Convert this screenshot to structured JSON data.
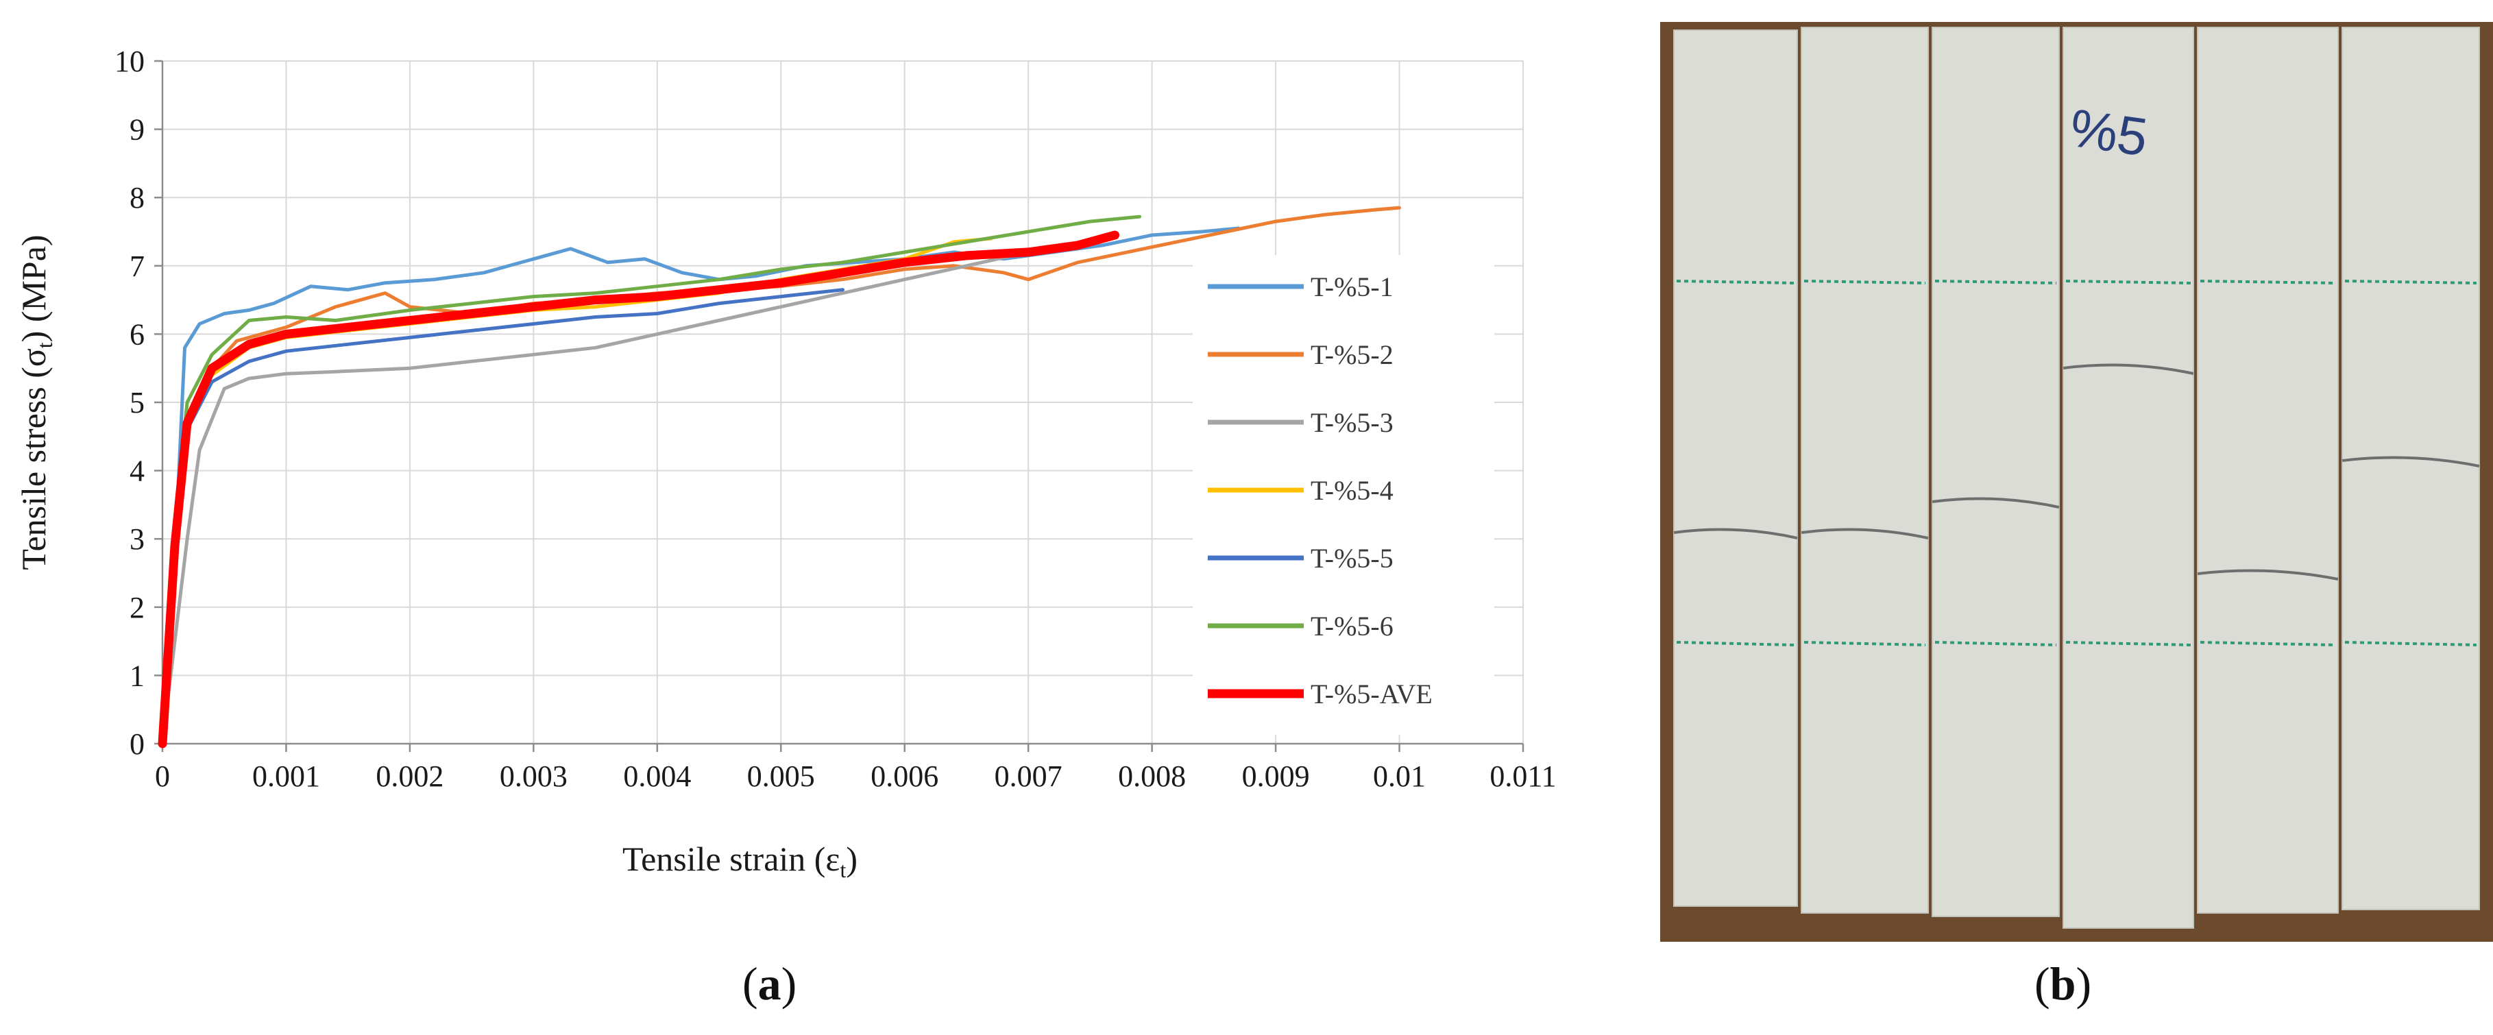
{
  "panels": {
    "a_label": "a",
    "b_label": "b"
  },
  "chart_data": {
    "type": "line",
    "xlabel_prefix": "Tensile strain (ε",
    "xlabel_sub": "t",
    "xlabel_suffix": ")",
    "ylabel_prefix": "Tensile stress (σ",
    "ylabel_sub": "t",
    "ylabel_suffix": ") (MPa)",
    "xlim": [
      0,
      0.011
    ],
    "ylim": [
      0,
      10
    ],
    "xticks": [
      0,
      0.001,
      0.002,
      0.003,
      0.004,
      0.005,
      0.006,
      0.007,
      0.008,
      0.009,
      0.01,
      0.011
    ],
    "xtick_labels": [
      "0",
      "0.001",
      "0.002",
      "0.003",
      "0.004",
      "0.005",
      "0.006",
      "0.007",
      "0.008",
      "0.009",
      "0.01",
      "0.011"
    ],
    "yticks": [
      0,
      1,
      2,
      3,
      4,
      5,
      6,
      7,
      8,
      9,
      10
    ],
    "ytick_labels": [
      "0",
      "1",
      "2",
      "3",
      "4",
      "5",
      "6",
      "7",
      "8",
      "9",
      "10"
    ],
    "grid": true,
    "legend_position": "right",
    "series": [
      {
        "name": "T-%5-1",
        "color": "#5b9bd5",
        "width": 5,
        "x": [
          0,
          0.00012,
          0.00018,
          0.0003,
          0.0005,
          0.0007,
          0.0009,
          0.0012,
          0.0015,
          0.0018,
          0.0022,
          0.0026,
          0.003,
          0.0033,
          0.0036,
          0.0039,
          0.0042,
          0.0045,
          0.0048,
          0.0052,
          0.0056,
          0.006,
          0.0064,
          0.0068,
          0.0072,
          0.0076,
          0.008,
          0.0084,
          0.0087
        ],
        "y": [
          0,
          3.5,
          5.8,
          6.15,
          6.3,
          6.35,
          6.45,
          6.7,
          6.65,
          6.75,
          6.8,
          6.9,
          7.1,
          7.25,
          7.05,
          7.1,
          6.9,
          6.8,
          6.85,
          7.0,
          7.05,
          7.1,
          7.2,
          7.1,
          7.2,
          7.3,
          7.45,
          7.5,
          7.55
        ]
      },
      {
        "name": "T-%5-2",
        "color": "#ed7d31",
        "width": 5,
        "x": [
          0,
          0.0001,
          0.0002,
          0.0004,
          0.0006,
          0.001,
          0.0014,
          0.0018,
          0.002,
          0.0025,
          0.003,
          0.0035,
          0.004,
          0.0045,
          0.005,
          0.0055,
          0.006,
          0.0064,
          0.0068,
          0.007,
          0.0074,
          0.0078,
          0.0082,
          0.0086,
          0.009,
          0.0094,
          0.0098,
          0.01
        ],
        "y": [
          0,
          3.0,
          4.8,
          5.5,
          5.9,
          6.1,
          6.4,
          6.6,
          6.4,
          6.3,
          6.45,
          6.5,
          6.6,
          6.65,
          6.7,
          6.8,
          6.95,
          7.0,
          6.9,
          6.8,
          7.05,
          7.2,
          7.35,
          7.5,
          7.65,
          7.75,
          7.82,
          7.85
        ]
      },
      {
        "name": "T-%5-3",
        "color": "#a5a5a5",
        "width": 5,
        "x": [
          0,
          0.0001,
          0.0002,
          0.0003,
          0.0005,
          0.0007,
          0.001,
          0.0014,
          0.002,
          0.0025,
          0.003,
          0.0035,
          0.004,
          0.0045,
          0.005,
          0.0055,
          0.006,
          0.0065,
          0.007
        ],
        "y": [
          0,
          1.5,
          3.0,
          4.3,
          5.2,
          5.35,
          5.42,
          5.45,
          5.5,
          5.6,
          5.7,
          5.8,
          6.0,
          6.2,
          6.4,
          6.6,
          6.8,
          7.0,
          7.2
        ]
      },
      {
        "name": "T-%5-4",
        "color": "#ffc000",
        "width": 5,
        "x": [
          0,
          0.0001,
          0.0002,
          0.0004,
          0.0007,
          0.001,
          0.0015,
          0.002,
          0.0025,
          0.003,
          0.0035,
          0.004,
          0.0045,
          0.005,
          0.0055,
          0.006,
          0.0064,
          0.0067
        ],
        "y": [
          0,
          3.0,
          4.6,
          5.4,
          5.8,
          5.95,
          6.05,
          6.15,
          6.25,
          6.35,
          6.4,
          6.5,
          6.6,
          6.8,
          6.95,
          7.1,
          7.35,
          7.4
        ]
      },
      {
        "name": "T-%5-5",
        "color": "#4472c4",
        "width": 5,
        "x": [
          0,
          0.0001,
          0.0002,
          0.0004,
          0.0007,
          0.001,
          0.0015,
          0.002,
          0.0025,
          0.003,
          0.0035,
          0.004,
          0.0045,
          0.005,
          0.0055
        ],
        "y": [
          0,
          2.8,
          4.6,
          5.3,
          5.6,
          5.75,
          5.85,
          5.95,
          6.05,
          6.15,
          6.25,
          6.3,
          6.45,
          6.55,
          6.65
        ]
      },
      {
        "name": "T-%5-6",
        "color": "#70ad47",
        "width": 5,
        "x": [
          0,
          0.0001,
          0.0002,
          0.0004,
          0.0007,
          0.001,
          0.0014,
          0.002,
          0.0025,
          0.003,
          0.0035,
          0.004,
          0.0045,
          0.005,
          0.0055,
          0.006,
          0.0065,
          0.007,
          0.0075,
          0.0079
        ],
        "y": [
          0,
          3.2,
          5.0,
          5.7,
          6.2,
          6.25,
          6.2,
          6.35,
          6.45,
          6.55,
          6.6,
          6.7,
          6.8,
          6.95,
          7.05,
          7.2,
          7.35,
          7.5,
          7.65,
          7.72
        ]
      },
      {
        "name": "T-%5-AVE",
        "color": "#ff0000",
        "width": 13,
        "x": [
          0,
          0.0001,
          0.0002,
          0.0004,
          0.0007,
          0.001,
          0.0015,
          0.002,
          0.0025,
          0.003,
          0.0035,
          0.004,
          0.0045,
          0.005,
          0.0055,
          0.006,
          0.0065,
          0.007,
          0.0074,
          0.0077
        ],
        "y": [
          0,
          2.9,
          4.7,
          5.5,
          5.85,
          6.0,
          6.1,
          6.2,
          6.3,
          6.4,
          6.5,
          6.55,
          6.65,
          6.75,
          6.9,
          7.05,
          7.15,
          7.2,
          7.3,
          7.45
        ]
      }
    ]
  },
  "photo": {
    "specimen_marking": "%5",
    "colors": {
      "board": "#6b4a2e",
      "specimen": "#dcdcd7",
      "green_line": "#2e9a76",
      "crack": "#6e6e6e",
      "pen": "#2b3f7a"
    }
  }
}
